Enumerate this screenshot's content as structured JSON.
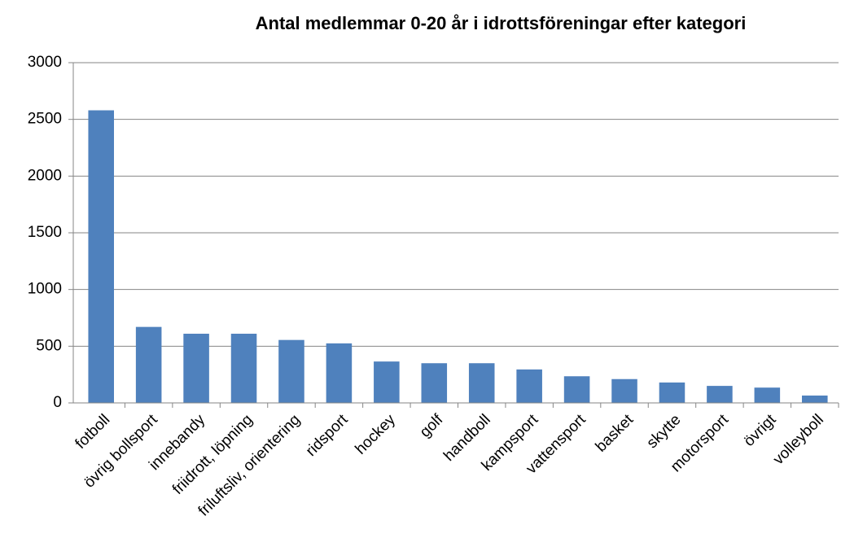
{
  "chart_data": {
    "type": "bar",
    "title": "Antal medlemmar 0-20 år i idrottsföreningar efter kategori",
    "categories": [
      "fotboll",
      "övrig bollsport",
      "innebandy",
      "friidrott, löpning",
      "friluftsliv, orientering",
      "ridsport",
      "hockey",
      "golf",
      "handboll",
      "kampsport",
      "vattensport",
      "basket",
      "skytte",
      "motorsport",
      "övrigt",
      "volleyboll"
    ],
    "values": [
      2580,
      670,
      610,
      610,
      555,
      525,
      365,
      350,
      350,
      295,
      235,
      210,
      180,
      150,
      135,
      65
    ],
    "color": "#4f81bd",
    "ylim": [
      0,
      3000
    ],
    "yticks": [
      0,
      500,
      1000,
      1500,
      2000,
      2500,
      3000
    ],
    "grid": true
  }
}
